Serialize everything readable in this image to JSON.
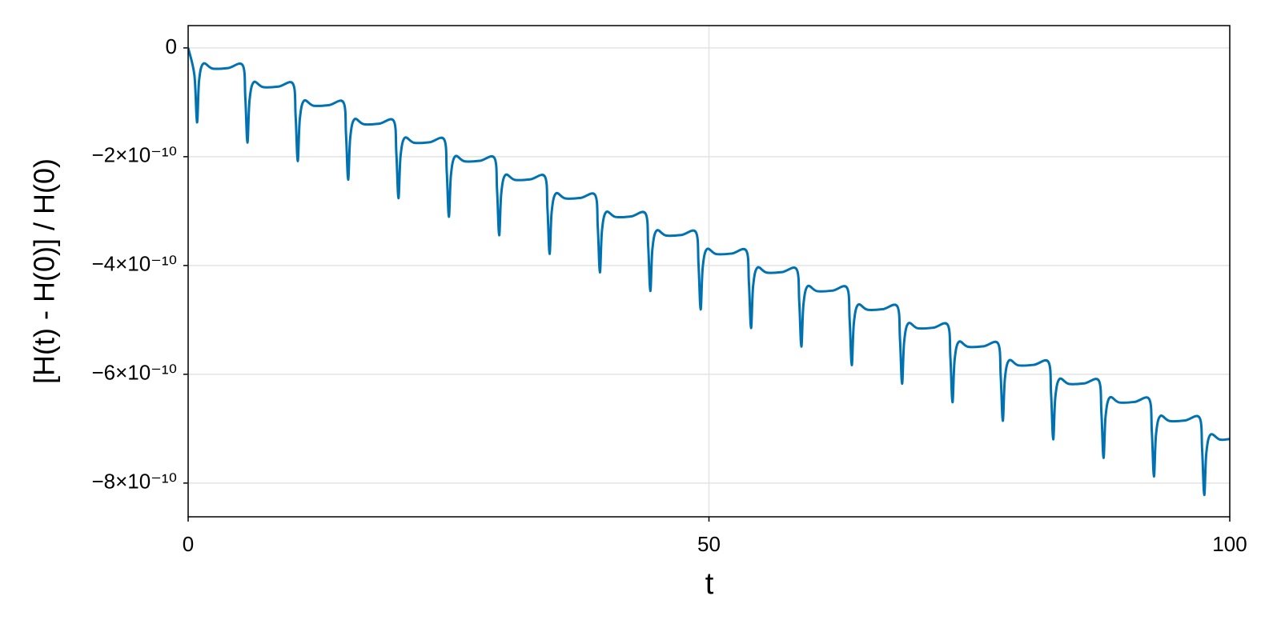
{
  "chart_data": {
    "type": "line",
    "x_label": "t",
    "y_label": "[H(t) - H(0)] / H(0)",
    "x": [
      0,
      0.6,
      0.85,
      1.05,
      1.45,
      2.35,
      3.85,
      5.24,
      5.49,
      5.69,
      5.89,
      6.29,
      7.19,
      8.69,
      10.07,
      10.32,
      10.52,
      10.72,
      11.12,
      12.02,
      13.52,
      14.91,
      15.16,
      15.36,
      15.56,
      15.96,
      16.86,
      18.36,
      19.74,
      19.99,
      20.19,
      20.39,
      20.79,
      21.69,
      23.19,
      24.58,
      24.83,
      25.03,
      25.23,
      25.63,
      26.53,
      28.03,
      29.41,
      29.66,
      29.86,
      30.06,
      30.46,
      31.36,
      32.86,
      34.25,
      34.5,
      34.7,
      34.9,
      35.3,
      36.2,
      37.7,
      39.08,
      39.33,
      39.53,
      39.73,
      40.13,
      41.03,
      42.53,
      43.92,
      44.17,
      44.37,
      44.57,
      44.97,
      45.87,
      47.37,
      48.75,
      49,
      49.2,
      49.4,
      49.8,
      50.7,
      52.2,
      53.59,
      53.84,
      54.04,
      54.24,
      54.64,
      55.54,
      57.04,
      58.42,
      58.67,
      58.87,
      59.07,
      59.47,
      60.37,
      61.87,
      63.26,
      63.51,
      63.71,
      63.91,
      64.31,
      65.21,
      66.71,
      68.09,
      68.34,
      68.54,
      68.74,
      69.14,
      70.04,
      71.54,
      72.93,
      73.18,
      73.38,
      73.58,
      73.98,
      74.88,
      76.38,
      77.76,
      78.01,
      78.21,
      78.41,
      78.81,
      79.71,
      81.21,
      82.6,
      82.85,
      83.05,
      83.25,
      83.65,
      84.55,
      86.05,
      87.43,
      87.68,
      87.88,
      88.08,
      88.48,
      89.38,
      90.88,
      92.27,
      92.52,
      92.72,
      92.92,
      93.32,
      94.22,
      95.72,
      97.1,
      97.35,
      97.55,
      97.75,
      98.15,
      99.05,
      100
    ],
    "series": [
      {
        "color": "#0072b2",
        "values": [
          0,
          -5e-11,
          -1.37e-10,
          -6e-11,
          -2.9e-11,
          -3.8e-11,
          -3.7e-11,
          -3.2e-11,
          -9.2e-11,
          -1.74e-10,
          -9.7e-11,
          -6.31e-11,
          -7.21e-11,
          -7.11e-11,
          -6.61e-11,
          -1.261e-10,
          -2.081e-10,
          -1.311e-10,
          -9.72e-11,
          -1.062e-10,
          -1.052e-10,
          -1.002e-10,
          -1.602e-10,
          -2.422e-10,
          -1.652e-10,
          -1.313e-10,
          -1.403e-10,
          -1.393e-10,
          -1.343e-10,
          -1.943e-10,
          -2.763e-10,
          -1.993e-10,
          -1.654e-10,
          -1.744e-10,
          -1.734e-10,
          -1.684e-10,
          -2.284e-10,
          -3.104e-10,
          -2.334e-10,
          -1.995e-10,
          -2.085e-10,
          -2.075e-10,
          -2.025e-10,
          -2.625e-10,
          -3.445e-10,
          -2.675e-10,
          -2.336e-10,
          -2.426e-10,
          -2.416e-10,
          -2.366e-10,
          -2.966e-10,
          -3.786e-10,
          -3.016e-10,
          -2.677e-10,
          -2.767e-10,
          -2.757e-10,
          -2.707e-10,
          -3.307e-10,
          -4.127e-10,
          -3.357e-10,
          -3.018e-10,
          -3.108e-10,
          -3.098e-10,
          -3.048e-10,
          -3.648e-10,
          -4.468e-10,
          -3.698e-10,
          -3.359e-10,
          -3.449e-10,
          -3.439e-10,
          -3.389e-10,
          -3.989e-10,
          -4.809e-10,
          -4.039e-10,
          -3.7e-10,
          -3.79e-10,
          -3.78e-10,
          -3.73e-10,
          -4.33e-10,
          -5.15e-10,
          -4.38e-10,
          -4.041e-10,
          -4.131e-10,
          -4.121e-10,
          -4.071e-10,
          -4.671e-10,
          -5.491e-10,
          -4.721e-10,
          -4.382e-10,
          -4.472e-10,
          -4.462e-10,
          -4.412e-10,
          -5.012e-10,
          -5.832e-10,
          -5.062e-10,
          -4.723e-10,
          -4.813e-10,
          -4.803e-10,
          -4.753e-10,
          -5.353e-10,
          -6.173e-10,
          -5.403e-10,
          -5.064e-10,
          -5.154e-10,
          -5.144e-10,
          -5.094e-10,
          -5.694e-10,
          -6.514e-10,
          -5.744e-10,
          -5.405e-10,
          -5.495e-10,
          -5.485e-10,
          -5.435e-10,
          -6.035e-10,
          -6.855e-10,
          -6.085e-10,
          -5.746e-10,
          -5.836e-10,
          -5.826e-10,
          -5.776e-10,
          -6.376e-10,
          -7.196e-10,
          -6.426e-10,
          -6.087e-10,
          -6.177e-10,
          -6.167e-10,
          -6.117e-10,
          -6.717e-10,
          -7.537e-10,
          -6.767e-10,
          -6.428e-10,
          -6.518e-10,
          -6.508e-10,
          -6.458e-10,
          -7.058e-10,
          -7.878e-10,
          -7.108e-10,
          -6.769e-10,
          -6.859e-10,
          -6.849e-10,
          -6.799e-10,
          -7.399e-10,
          -8.219e-10,
          -7.449e-10,
          -7.11e-10,
          -7.2e-10,
          -7.19e-10
        ]
      }
    ],
    "xlim": [
      0,
      100
    ],
    "xticks": [
      0,
      50,
      100
    ],
    "ylim": [
      -8.62e-10,
      4.1e-11
    ],
    "yticks": [
      0,
      {
        "value": -2e-10,
        "label": "−2×10⁻¹⁰"
      },
      {
        "value": -4e-10,
        "label": "−4×10⁻¹⁰"
      },
      {
        "value": -6e-10,
        "label": "−6×10⁻¹⁰"
      },
      {
        "value": -8e-10,
        "label": "−8×10⁻¹⁰"
      }
    ],
    "grid": true
  }
}
